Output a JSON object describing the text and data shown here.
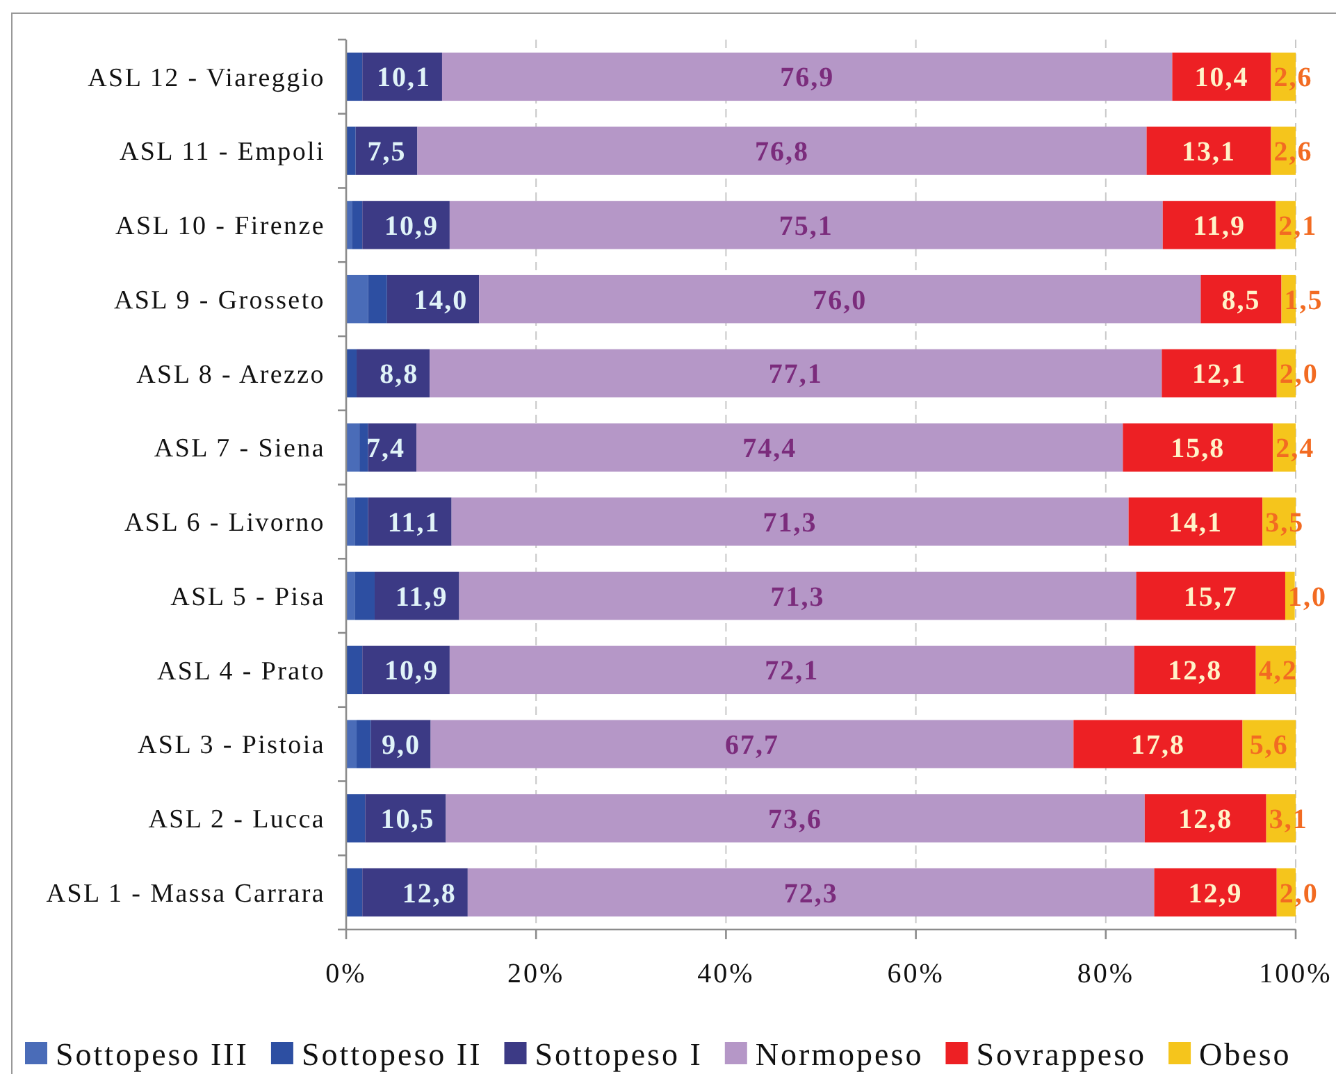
{
  "chart_data": {
    "type": "bar",
    "orientation": "horizontal",
    "stacked": true,
    "categories": [
      "ASL 12 - Viareggio",
      "ASL 11 - Empoli",
      "ASL 10 - Firenze",
      "ASL 9 - Grosseto",
      "ASL 8 - Arezzo",
      "ASL 7 - Siena",
      "ASL 6 - Livorno",
      "ASL 5 - Pisa",
      "ASL 4 - Prato",
      "ASL 3 - Pistoia",
      "ASL 2 - Lucca",
      "ASL 1 - Massa Carrara"
    ],
    "series": [
      {
        "name": "Sottopeso III",
        "color": "#4a6cb8",
        "values": [
          null,
          null,
          0.6,
          2.3,
          null,
          1.4,
          0.9,
          0.9,
          null,
          1.1,
          null,
          null
        ]
      },
      {
        "name": "Sottopeso II",
        "color": "#2d4fa2",
        "values": [
          1.7,
          1.0,
          1.1,
          2.0,
          1.1,
          0.9,
          1.4,
          2.1,
          1.7,
          1.5,
          2.0,
          1.7
        ]
      },
      {
        "name": "Sottopeso I",
        "color": "#3c3a85",
        "values": [
          8.4,
          6.5,
          9.2,
          9.7,
          7.7,
          5.1,
          8.8,
          8.9,
          9.2,
          6.3,
          8.5,
          11.1
        ]
      },
      {
        "name": "Normopeso",
        "color": "#b597c7",
        "values": [
          76.9,
          76.8,
          75.1,
          76.0,
          77.1,
          74.4,
          71.3,
          71.3,
          72.1,
          67.7,
          73.6,
          72.3
        ],
        "value_labels": [
          "76,9",
          "76,8",
          "75,1",
          "76,0",
          "77,1",
          "74,4",
          "71,3",
          "71,3",
          "72,1",
          "67,7",
          "73,6",
          "72,3"
        ]
      },
      {
        "name": "Sovrappeso",
        "color": "#ed2024",
        "values": [
          10.4,
          13.1,
          11.9,
          8.5,
          12.1,
          15.8,
          14.1,
          15.7,
          12.8,
          17.8,
          12.8,
          12.9
        ],
        "value_labels": [
          "10,4",
          "13,1",
          "11,9",
          "8,5",
          "12,1",
          "15,8",
          "14,1",
          "15,7",
          "12,8",
          "17,8",
          "12,8",
          "12,9"
        ]
      },
      {
        "name": "Obeso",
        "color": "#f5c51c",
        "values": [
          2.6,
          2.6,
          2.1,
          1.5,
          2.0,
          2.4,
          3.5,
          1.0,
          4.2,
          5.6,
          3.1,
          2.0
        ],
        "value_labels": [
          "2,6",
          "2,6",
          "2,1",
          "1,5",
          "2,0",
          "2,4",
          "3,5",
          "1,0",
          "4,2",
          "5,6",
          "3,1",
          "2,0"
        ]
      }
    ],
    "annotations": [
      {
        "text": "10,1",
        "x": 10.1,
        "y": "ASL 12 - Viareggio"
      },
      {
        "text": "7,5",
        "x": 7.5,
        "y": "ASL 11 - Empoli"
      },
      {
        "text": "10,9",
        "x": 10.9,
        "y": "ASL 10 - Firenze"
      },
      {
        "text": "14,0",
        "x": 14.0,
        "y": "ASL 9 - Grosseto"
      },
      {
        "text": "8,8",
        "x": 8.8,
        "y": "ASL 8 - Arezzo"
      },
      {
        "text": "7,4",
        "x": 7.4,
        "y": "ASL 7 - Siena"
      },
      {
        "text": "11,1",
        "x": 11.1,
        "y": "ASL 6 - Livorno"
      },
      {
        "text": "11,9",
        "x": 11.9,
        "y": "ASL 5 - Pisa"
      },
      {
        "text": "10,9",
        "x": 10.9,
        "y": "ASL 4 - Prato"
      },
      {
        "text": "9,0",
        "x": 9.0,
        "y": "ASL 3 - Pistoia"
      },
      {
        "text": "10,5",
        "x": 10.5,
        "y": "ASL 2 - Lucca"
      },
      {
        "text": "12,8",
        "x": 12.8,
        "y": "ASL 1 - Massa Carrara"
      }
    ],
    "xlim": [
      0,
      100
    ],
    "xticks": [
      {
        "value": 0,
        "label": "0%"
      },
      {
        "value": 20,
        "label": "20%"
      },
      {
        "value": 40,
        "label": "40%"
      },
      {
        "value": 60,
        "label": "60%"
      },
      {
        "value": 80,
        "label": "80%"
      },
      {
        "value": 100,
        "label": "100%"
      }
    ],
    "grid": "x",
    "legend": "bottom"
  }
}
